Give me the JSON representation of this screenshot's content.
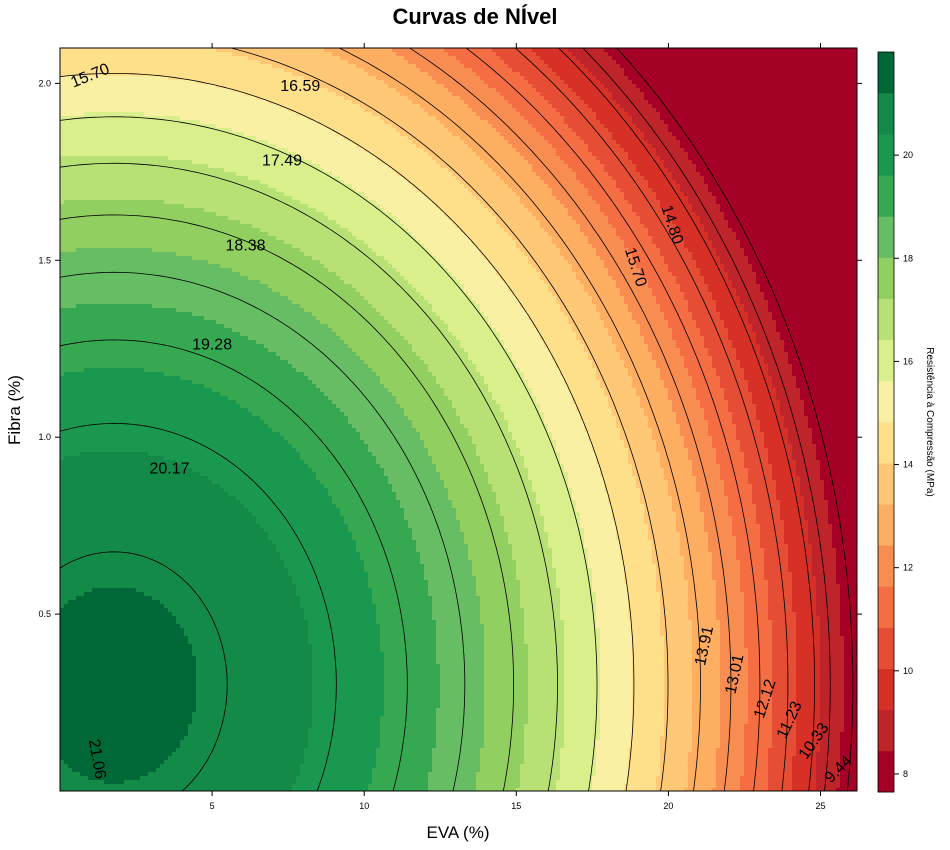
{
  "chart_data": {
    "type": "contour",
    "title": "Curvas de NÍvel",
    "xlabel": "EVA (%)",
    "ylabel": "Fibra (%)",
    "colorbar_label": "Resistência à Compressão (MPa)",
    "xlim": [
      0,
      26.2
    ],
    "ylim": [
      0,
      2.1
    ],
    "x_ticks": [
      5,
      10,
      15,
      20,
      25
    ],
    "y_ticks": [
      0.5,
      1.0,
      1.5,
      2.0
    ],
    "y_tick_labels": [
      "0.5",
      "1.0",
      "1.5",
      "2.0"
    ],
    "colorbar_ticks": [
      8,
      10,
      12,
      14,
      16,
      18,
      20
    ],
    "colorbar_range": [
      7.65,
      22.0
    ],
    "levels": [
      8.1,
      8.9,
      9.44,
      10.33,
      11.23,
      12.12,
      13.01,
      13.91,
      14.8,
      15.7,
      16.59,
      17.49,
      18.38,
      19.28,
      20.17,
      21.06
    ],
    "colorbar_colors": [
      "#a50026",
      "#c0242b",
      "#d73027",
      "#e54e34",
      "#f46d43",
      "#f88d52",
      "#fdae61",
      "#fec877",
      "#fee08b",
      "#f9f0a3",
      "#d9ef8b",
      "#b7e075",
      "#91cf60",
      "#66bd63",
      "#36a852",
      "#1a9850",
      "#148a48",
      "#006837"
    ],
    "contour_labels": [
      {
        "value": "15.70",
        "x": 1.0,
        "y": 2.02,
        "angle": -22
      },
      {
        "value": "16.59",
        "x": 7.9,
        "y": 1.99,
        "angle": 0
      },
      {
        "value": "17.49",
        "x": 7.3,
        "y": 1.78,
        "angle": 0
      },
      {
        "value": "18.38",
        "x": 6.1,
        "y": 1.54,
        "angle": 0
      },
      {
        "value": "19.28",
        "x": 5.0,
        "y": 1.26,
        "angle": 0
      },
      {
        "value": "20.17",
        "x": 3.6,
        "y": 0.91,
        "angle": 0
      },
      {
        "value": "21.06",
        "x": 1.2,
        "y": 0.09,
        "angle": 80
      },
      {
        "value": "14.80",
        "x": 20.1,
        "y": 1.6,
        "angle": 72
      },
      {
        "value": "15.70",
        "x": 18.9,
        "y": 1.48,
        "angle": 72
      },
      {
        "value": "13.91",
        "x": 21.2,
        "y": 0.41,
        "angle": -78
      },
      {
        "value": "13.01",
        "x": 22.2,
        "y": 0.33,
        "angle": -78
      },
      {
        "value": "12.12",
        "x": 23.2,
        "y": 0.26,
        "angle": -72
      },
      {
        "value": "11.23",
        "x": 24.0,
        "y": 0.2,
        "angle": -65
      },
      {
        "value": "10.33",
        "x": 24.8,
        "y": 0.14,
        "angle": -55
      },
      {
        "value": "9.44",
        "x": 25.6,
        "y": 0.06,
        "angle": -45
      }
    ]
  }
}
